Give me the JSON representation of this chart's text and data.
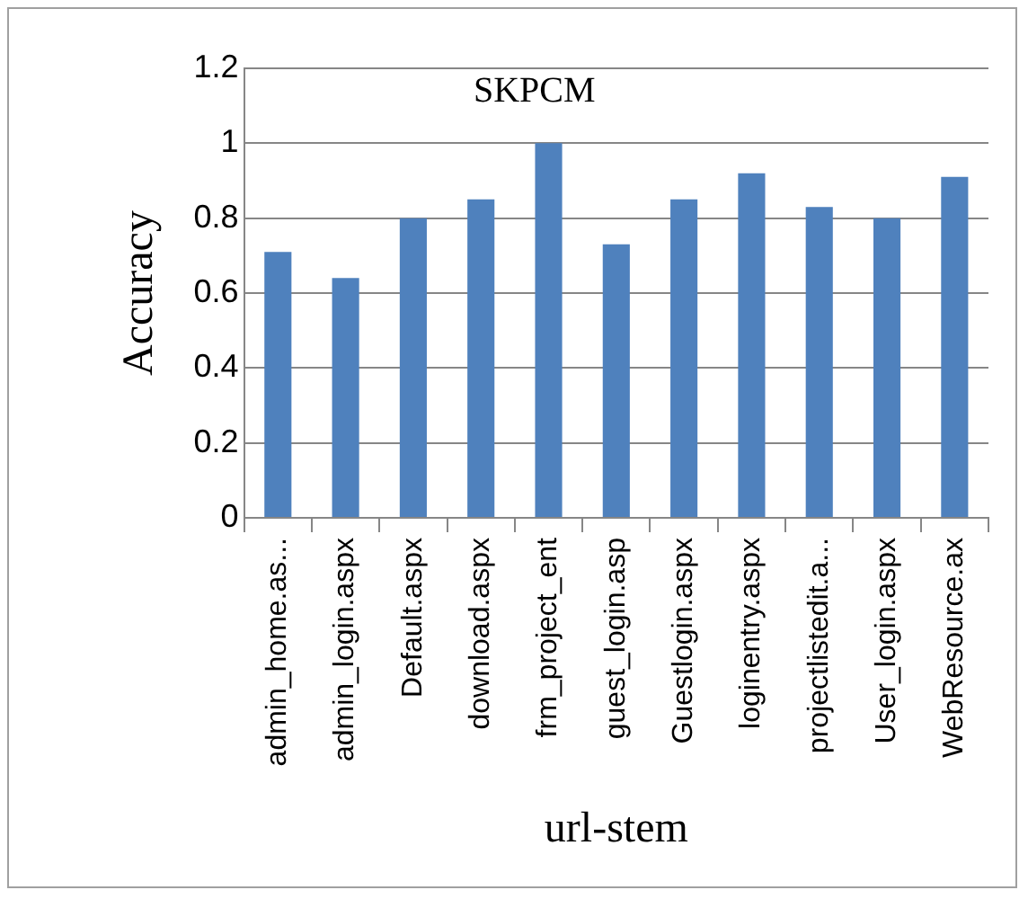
{
  "chart_data": {
    "type": "bar",
    "title": "SKPCM",
    "xlabel": "url-stem",
    "ylabel": "Accuracy",
    "categories": [
      "admin_home.as...",
      "admin_login.aspx",
      "Default.aspx",
      "download.aspx",
      "frm_project_ent",
      "guest_login.asp",
      "Guestlogin.aspx",
      "loginentry.aspx",
      "projectlistedit.a...",
      "User_login.aspx",
      "WebResource.ax"
    ],
    "values": [
      0.71,
      0.64,
      0.8,
      0.85,
      1.0,
      0.73,
      0.85,
      0.92,
      0.83,
      0.8,
      0.91
    ],
    "color": "#4f81bd",
    "ylim": [
      0,
      1.2
    ],
    "yticks": [
      0,
      0.2,
      0.4,
      0.6,
      0.8,
      1,
      1.2
    ],
    "grid": "y"
  }
}
